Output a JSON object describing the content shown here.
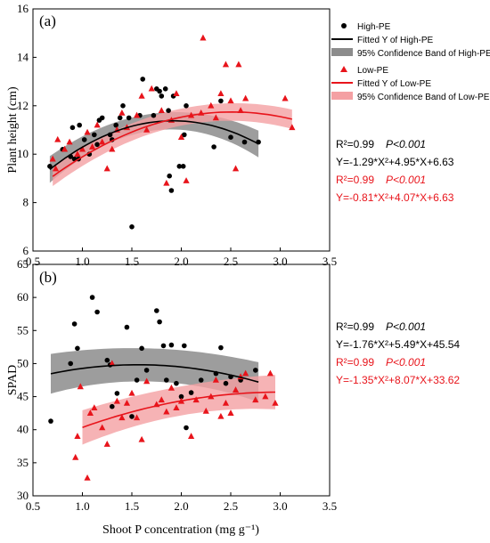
{
  "colors": {
    "high": "#000000",
    "low": "#e8141b",
    "high_band": "#8c8c8c",
    "low_band": "#f4a0a3"
  },
  "chart_data": [
    {
      "type": "scatter",
      "panel_label": "(a)",
      "ylabel": "Plant height (cm)",
      "xlabel": "",
      "xlim": [
        0.5,
        3.5
      ],
      "ylim": [
        6,
        16
      ],
      "xticks": [
        "0.5",
        "1.0",
        "1.5",
        "2.0",
        "2.5",
        "3.0",
        "3.5"
      ],
      "yticks": [
        "6",
        "8",
        "10",
        "12",
        "14",
        "16"
      ],
      "legend": {
        "high_points": "High-PE",
        "high_fit": "Fitted Y of High-PE",
        "high_band": "95% Confidence Band of High-PE",
        "low_points": "Low-PE",
        "low_fit": "Fitted Y of Low-PE",
        "low_band": "95% Confidence Band of Low-PE"
      },
      "stats": {
        "high_r2": "R²=0.99",
        "high_p": "P<0.001",
        "high_eq": "Y=-1.29*X²+4.95*X+6.63",
        "low_r2": "R²=0.99",
        "low_p": "P<0.001",
        "low_eq": "Y=-0.81*X²+4.07*X+6.63"
      },
      "series": [
        {
          "name": "High-PE",
          "marker": "circle",
          "points": [
            [
              0.67,
              9.5
            ],
            [
              0.8,
              10.2
            ],
            [
              0.88,
              9.9
            ],
            [
              0.9,
              11.1
            ],
            [
              0.92,
              9.8
            ],
            [
              0.96,
              9.8
            ],
            [
              0.97,
              11.2
            ],
            [
              1.02,
              10.6
            ],
            [
              1.07,
              10.0
            ],
            [
              1.12,
              10.8
            ],
            [
              1.15,
              10.4
            ],
            [
              1.17,
              11.4
            ],
            [
              1.2,
              11.5
            ],
            [
              1.28,
              10.8
            ],
            [
              1.3,
              10.6
            ],
            [
              1.34,
              11.2
            ],
            [
              1.38,
              11.5
            ],
            [
              1.41,
              12.0
            ],
            [
              1.47,
              11.5
            ],
            [
              1.5,
              7.0
            ],
            [
              1.58,
              11.6
            ],
            [
              1.61,
              13.1
            ],
            [
              1.72,
              11.6
            ],
            [
              1.75,
              12.7
            ],
            [
              1.78,
              12.6
            ],
            [
              1.8,
              12.4
            ],
            [
              1.84,
              12.7
            ],
            [
              1.87,
              11.8
            ],
            [
              1.88,
              9.1
            ],
            [
              1.9,
              8.5
            ],
            [
              1.92,
              12.4
            ],
            [
              1.98,
              9.5
            ],
            [
              2.02,
              9.5
            ],
            [
              2.03,
              10.8
            ],
            [
              2.05,
              12.0
            ],
            [
              2.33,
              10.3
            ],
            [
              2.4,
              12.2
            ],
            [
              2.5,
              10.7
            ],
            [
              2.64,
              10.5
            ],
            [
              2.78,
              10.5
            ]
          ],
          "fit": {
            "a": -1.29,
            "b": 4.95,
            "c": 6.63,
            "x_range": [
              0.67,
              2.78
            ]
          }
        },
        {
          "name": "Low-PE",
          "marker": "triangle",
          "points": [
            [
              0.7,
              9.8
            ],
            [
              0.73,
              9.4
            ],
            [
              0.75,
              10.6
            ],
            [
              0.82,
              10.2
            ],
            [
              0.87,
              10.5
            ],
            [
              0.95,
              10.0
            ],
            [
              1.0,
              10.2
            ],
            [
              1.05,
              10.9
            ],
            [
              1.1,
              10.3
            ],
            [
              1.15,
              11.2
            ],
            [
              1.2,
              10.5
            ],
            [
              1.25,
              9.4
            ],
            [
              1.3,
              10.2
            ],
            [
              1.35,
              11.0
            ],
            [
              1.4,
              11.7
            ],
            [
              1.45,
              11.1
            ],
            [
              1.55,
              11.6
            ],
            [
              1.6,
              12.4
            ],
            [
              1.65,
              11.0
            ],
            [
              1.7,
              12.7
            ],
            [
              1.8,
              11.8
            ],
            [
              1.85,
              8.8
            ],
            [
              1.9,
              11.4
            ],
            [
              1.95,
              12.5
            ],
            [
              2.0,
              10.7
            ],
            [
              2.05,
              8.9
            ],
            [
              2.1,
              11.6
            ],
            [
              2.2,
              11.7
            ],
            [
              2.22,
              14.8
            ],
            [
              2.3,
              12.0
            ],
            [
              2.35,
              11.5
            ],
            [
              2.4,
              12.5
            ],
            [
              2.45,
              13.7
            ],
            [
              2.5,
              12.2
            ],
            [
              2.55,
              9.4
            ],
            [
              2.58,
              13.7
            ],
            [
              2.6,
              11.8
            ],
            [
              2.65,
              12.3
            ],
            [
              3.05,
              12.3
            ],
            [
              3.12,
              11.1
            ]
          ],
          "fit": {
            "a": -0.81,
            "b": 4.07,
            "c": 6.63,
            "x_range": [
              0.7,
              3.12
            ]
          }
        }
      ]
    },
    {
      "type": "scatter",
      "panel_label": "(b)",
      "ylabel": "SPAD",
      "xlabel": "Shoot P concentration (mg g⁻¹)",
      "xlim": [
        0.5,
        3.5
      ],
      "ylim": [
        30,
        65
      ],
      "xticks": [
        "0.5",
        "1.0",
        "1.5",
        "2.0",
        "2.5",
        "3.0",
        "3.5"
      ],
      "yticks": [
        "30",
        "35",
        "40",
        "45",
        "50",
        "55",
        "60",
        "65"
      ],
      "stats": {
        "high_r2": "R²=0.99",
        "high_p": "P<0.001",
        "high_eq": "Y=-1.76*X²+5.49*X+45.54",
        "low_r2": "R²=0.99",
        "low_p": "P<0.001",
        "low_eq": "Y=-1.35*X²+8.07*X+33.62"
      },
      "series": [
        {
          "name": "High-PE",
          "marker": "circle",
          "points": [
            [
              0.68,
              41.3
            ],
            [
              0.88,
              50.0
            ],
            [
              0.92,
              56.0
            ],
            [
              0.95,
              52.3
            ],
            [
              1.1,
              60.0
            ],
            [
              1.15,
              57.8
            ],
            [
              1.25,
              50.5
            ],
            [
              1.28,
              49.8
            ],
            [
              1.3,
              43.5
            ],
            [
              1.35,
              45.5
            ],
            [
              1.45,
              55.5
            ],
            [
              1.5,
              42.0
            ],
            [
              1.55,
              47.5
            ],
            [
              1.6,
              52.3
            ],
            [
              1.65,
              49.0
            ],
            [
              1.75,
              58.0
            ],
            [
              1.78,
              56.3
            ],
            [
              1.82,
              52.7
            ],
            [
              1.85,
              47.5
            ],
            [
              1.9,
              52.8
            ],
            [
              1.95,
              47.0
            ],
            [
              2.0,
              45.0
            ],
            [
              2.03,
              52.7
            ],
            [
              2.05,
              40.3
            ],
            [
              2.1,
              45.6
            ],
            [
              2.2,
              47.5
            ],
            [
              2.35,
              48.5
            ],
            [
              2.4,
              52.4
            ],
            [
              2.45,
              47.0
            ],
            [
              2.5,
              48.0
            ],
            [
              2.6,
              47.5
            ],
            [
              2.75,
              49.0
            ]
          ],
          "fit": {
            "a": -1.76,
            "b": 5.49,
            "c": 45.54,
            "x_range": [
              0.68,
              2.78
            ]
          }
        },
        {
          "name": "Low-PE",
          "marker": "triangle",
          "points": [
            [
              0.93,
              35.8
            ],
            [
              0.95,
              39.0
            ],
            [
              0.98,
              46.5
            ],
            [
              1.05,
              32.7
            ],
            [
              1.08,
              42.5
            ],
            [
              1.12,
              43.3
            ],
            [
              1.2,
              40.3
            ],
            [
              1.25,
              37.8
            ],
            [
              1.3,
              50.0
            ],
            [
              1.35,
              44.3
            ],
            [
              1.4,
              41.8
            ],
            [
              1.45,
              44.0
            ],
            [
              1.5,
              45.5
            ],
            [
              1.55,
              41.8
            ],
            [
              1.6,
              38.5
            ],
            [
              1.65,
              47.3
            ],
            [
              1.75,
              43.8
            ],
            [
              1.8,
              44.5
            ],
            [
              1.85,
              42.7
            ],
            [
              1.9,
              46.3
            ],
            [
              1.95,
              43.3
            ],
            [
              2.0,
              44.3
            ],
            [
              2.1,
              39.0
            ],
            [
              2.15,
              44.5
            ],
            [
              2.25,
              42.8
            ],
            [
              2.3,
              45.0
            ],
            [
              2.35,
              47.5
            ],
            [
              2.4,
              42.0
            ],
            [
              2.45,
              44.0
            ],
            [
              2.5,
              42.5
            ],
            [
              2.55,
              46.0
            ],
            [
              2.6,
              48.0
            ],
            [
              2.65,
              48.5
            ],
            [
              2.75,
              44.5
            ],
            [
              2.85,
              45.0
            ],
            [
              2.9,
              48.5
            ],
            [
              2.95,
              44.0
            ]
          ],
          "fit": {
            "a": -1.35,
            "b": 8.07,
            "c": 33.62,
            "x_range": [
              1.0,
              2.95
            ]
          }
        }
      ]
    }
  ]
}
